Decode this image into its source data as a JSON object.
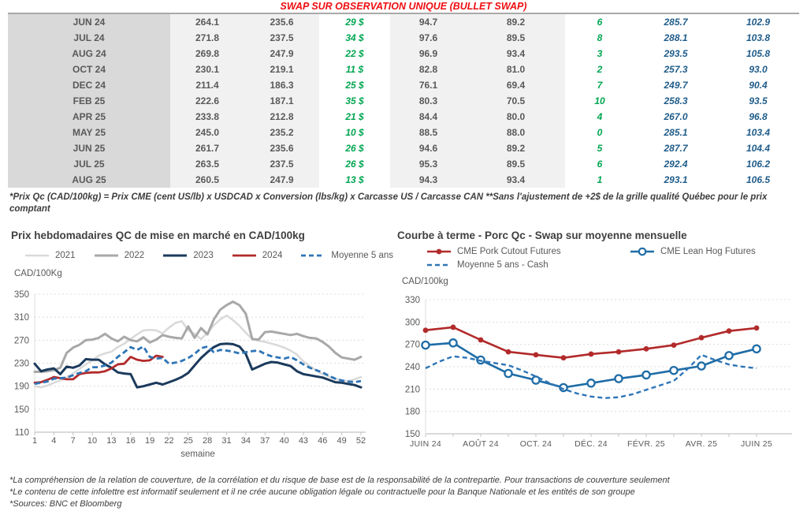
{
  "page_title": "SWAP SUR OBSERVATION UNIQUE (BULLET SWAP)",
  "colors": {
    "title_red": "#ef0e11",
    "green": "#00a651",
    "blue_text": "#1f5c8a",
    "navy": "#1b3a5c",
    "brick_red": "#b22a2a",
    "steel_blue": "#2e75b6",
    "gray": "#a8a8a8",
    "light_gray": "#d9d9d9"
  },
  "table": {
    "rows": [
      [
        "JUN 24",
        "264.1",
        "235.6",
        "29 $",
        "94.7",
        "89.2",
        "6",
        "285.7",
        "102.9"
      ],
      [
        "JUL 24",
        "271.8",
        "237.5",
        "34 $",
        "97.6",
        "89.5",
        "8",
        "288.1",
        "103.8"
      ],
      [
        "AUG 24",
        "269.8",
        "247.9",
        "22 $",
        "96.9",
        "93.4",
        "3",
        "293.5",
        "105.8"
      ],
      [
        "OCT 24",
        "230.1",
        "219.1",
        "11 $",
        "82.8",
        "81.0",
        "2",
        "257.3",
        "93.0"
      ],
      [
        "DEC 24",
        "211.4",
        "186.3",
        "25 $",
        "76.1",
        "69.4",
        "7",
        "249.7",
        "90.4"
      ],
      [
        "FEB 25",
        "222.6",
        "187.1",
        "35 $",
        "80.3",
        "70.5",
        "10",
        "258.3",
        "93.5"
      ],
      [
        "APR 25",
        "233.8",
        "212.8",
        "21 $",
        "84.4",
        "80.0",
        "4",
        "267.0",
        "96.8"
      ],
      [
        "MAY 25",
        "245.0",
        "235.2",
        "10 $",
        "88.5",
        "88.0",
        "0",
        "285.1",
        "103.4"
      ],
      [
        "JUN 25",
        "261.7",
        "235.6",
        "26 $",
        "94.6",
        "89.2",
        "5",
        "287.7",
        "104.4"
      ],
      [
        "JUL 25",
        "263.5",
        "237.5",
        "26 $",
        "95.3",
        "89.5",
        "6",
        "292.4",
        "106.2"
      ],
      [
        "AUG 25",
        "260.5",
        "247.9",
        "13 $",
        "94.3",
        "93.4",
        "1",
        "293.1",
        "106.5"
      ]
    ]
  },
  "table_note": "*Prix Qc (CAD/100kg) = Prix CME (cent US/lb) x USDCAD x Conversion (lbs/kg) x Carcasse US / Carcasse CAN **Sans l'ajustement de +2$ de la grille qualité Québec pour le prix comptant",
  "chart_data": [
    {
      "type": "line",
      "title": "Prix hebdomadaires QC de mise en marché en CAD/100kg",
      "y_label": "CAD/100Kg",
      "x_label": "semaine",
      "ylim": [
        110,
        350
      ],
      "ytick_step": 40,
      "grid": true,
      "legend_position": "top",
      "xticks": [
        1,
        4,
        7,
        10,
        13,
        16,
        19,
        22,
        25,
        28,
        31,
        34,
        37,
        40,
        43,
        46,
        49,
        52
      ],
      "x": [
        1,
        2,
        3,
        4,
        5,
        6,
        7,
        8,
        9,
        10,
        11,
        12,
        13,
        14,
        15,
        16,
        17,
        18,
        19,
        20,
        21,
        22,
        23,
        24,
        25,
        26,
        27,
        28,
        29,
        30,
        31,
        32,
        33,
        34,
        35,
        36,
        37,
        38,
        39,
        40,
        41,
        42,
        43,
        44,
        45,
        46,
        47,
        48,
        49,
        50,
        51,
        52
      ],
      "series": [
        {
          "name": "2021",
          "color": "#d9d9d9",
          "width": 2.5,
          "values": [
            190,
            188,
            191,
            196,
            200,
            205,
            212,
            220,
            228,
            235,
            243,
            247,
            250,
            258,
            264,
            272,
            280,
            287,
            288,
            287,
            282,
            292,
            300,
            303,
            287,
            281,
            272,
            283,
            296,
            306,
            313,
            305,
            295,
            283,
            272,
            269,
            267,
            264,
            261,
            257,
            252,
            245,
            233,
            225,
            217,
            211,
            207,
            203,
            200,
            199,
            202,
            206
          ]
        },
        {
          "name": "2022",
          "color": "#a8a8a8",
          "width": 3,
          "values": [
            215,
            215,
            216,
            218,
            222,
            248,
            257,
            262,
            270,
            271,
            274,
            281,
            273,
            268,
            276,
            270,
            268,
            275,
            266,
            271,
            279,
            276,
            274,
            273,
            294,
            274,
            291,
            280,
            306,
            323,
            331,
            337,
            331,
            316,
            272,
            271,
            284,
            285,
            283,
            281,
            279,
            281,
            277,
            274,
            273,
            267,
            259,
            248,
            240,
            238,
            236,
            241
          ]
        },
        {
          "name": "2023",
          "color": "#1b3a5c",
          "width": 3,
          "values": [
            229,
            216,
            219,
            221,
            211,
            224,
            222,
            226,
            237,
            236,
            236,
            228,
            222,
            214,
            212,
            211,
            188,
            190,
            193,
            196,
            193,
            197,
            201,
            206,
            213,
            226,
            239,
            249,
            258,
            263,
            264,
            263,
            259,
            246,
            219,
            224,
            229,
            232,
            231,
            228,
            225,
            216,
            211,
            209,
            207,
            205,
            201,
            197,
            196,
            194,
            192,
            188
          ]
        },
        {
          "name": "2024",
          "color": "#b22a2a",
          "width": 2.8,
          "values": [
            196,
            197,
            201,
            206,
            204,
            202,
            202,
            211,
            213,
            214,
            214,
            216,
            221,
            228,
            229,
            241,
            236,
            234,
            235,
            243,
            241
          ]
        },
        {
          "name": "Moyenne 5 ans",
          "color": "#2e75b6",
          "width": 2.8,
          "dash": "7 4",
          "values": [
            194,
            196,
            198,
            203,
            204,
            205,
            209,
            213,
            216,
            223,
            223,
            226,
            231,
            241,
            249,
            258,
            253,
            259,
            241,
            238,
            239,
            229,
            231,
            234,
            239,
            246,
            256,
            259,
            249,
            253,
            252,
            250,
            247,
            249,
            251,
            252,
            246,
            242,
            240,
            238,
            241,
            235,
            228,
            222,
            218,
            214,
            208,
            203,
            200,
            198,
            197,
            199
          ]
        }
      ]
    },
    {
      "type": "line",
      "title": "Courbe à terme - Porc Qc - Swap sur moyenne mensuelle",
      "y_label": "CAD/100kg",
      "x_label": "",
      "ylim": [
        150,
        330
      ],
      "ytick_step": 30,
      "grid": true,
      "legend_position": "top",
      "x_categories": [
        "JUIN 24",
        "",
        "AOÛT 24",
        "",
        "OCT. 24",
        "",
        "DÉC. 24",
        "",
        "FÉVR. 25",
        "",
        "AVR. 25",
        "",
        "JUIN 25"
      ],
      "series": [
        {
          "name": "CME Pork Cutout Futures",
          "color": "#b22a2a",
          "width": 2.6,
          "marker": "filled",
          "values": [
            289,
            293,
            276,
            260,
            256,
            252,
            257,
            260,
            264,
            269,
            279,
            288,
            292
          ]
        },
        {
          "name": "CME Lean Hog Futures",
          "color": "#1e6ca6",
          "width": 2.6,
          "marker": "open",
          "values": [
            269,
            272,
            249,
            231,
            222,
            212,
            218,
            224,
            229,
            235,
            241,
            255,
            264
          ]
        },
        {
          "name": "Moyenne 5 ans - Cash",
          "color": "#2e75b6",
          "width": 2.4,
          "dash": "6 4",
          "x": [
            0,
            0.5,
            1,
            1.5,
            2,
            2.5,
            3,
            3.5,
            4,
            4.5,
            5,
            5.5,
            6,
            6.5,
            7,
            7.5,
            8,
            8.5,
            9,
            9.5,
            10,
            10.5,
            11,
            11.5,
            12
          ],
          "values": [
            238,
            247,
            254,
            252,
            248,
            245,
            242,
            235,
            227,
            218,
            210,
            204,
            200,
            198,
            199,
            203,
            209,
            215,
            221,
            237,
            256,
            249,
            243,
            240,
            238
          ]
        }
      ]
    }
  ],
  "footnotes": [
    "*La compréhension de la relation de couverture, de la corrélation et du risque de base est de la responsabilité de la contrepartie. Pour transactions de couverture seulement",
    "*Le contenu de cette infolettre est informatif seulement et il ne crée aucune obligation légale ou contractuelle pour la Banque Nationale et les entités de son groupe",
    "*Sources: BNC et Bloomberg"
  ]
}
